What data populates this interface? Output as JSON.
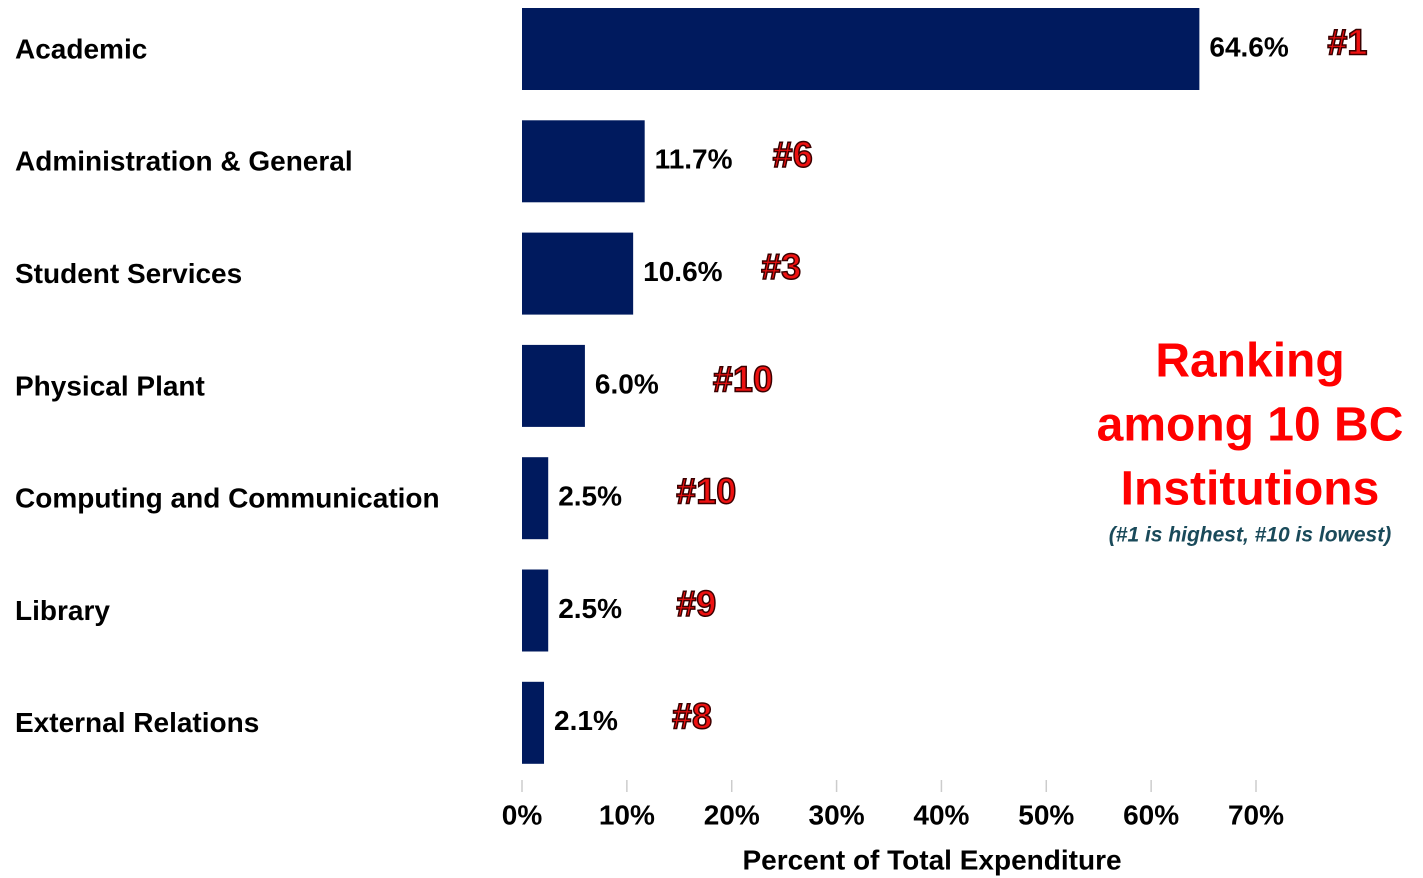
{
  "chart_data": {
    "type": "bar",
    "orientation": "horizontal",
    "categories": [
      "Academic",
      "Administration & General",
      "Student Services",
      "Physical Plant",
      "Computing and Communication",
      "Library",
      "External Relations"
    ],
    "values": [
      64.6,
      11.7,
      10.6,
      6.0,
      2.5,
      2.5,
      2.1
    ],
    "value_labels": [
      "64.6%",
      "11.7%",
      "10.6%",
      "6.0%",
      "2.5%",
      "2.5%",
      "2.1%"
    ],
    "ranks": [
      "#1",
      "#6",
      "#3",
      "#10",
      "#10",
      "#9",
      "#8"
    ],
    "color": "#001a5e",
    "xlabel": "Percent of Total Expenditure",
    "xlim": [
      0,
      70
    ],
    "xticks": [
      {
        "value": 0,
        "label": "0%"
      },
      {
        "value": 10,
        "label": "10%"
      },
      {
        "value": 20,
        "label": "20%"
      },
      {
        "value": 30,
        "label": "30%"
      },
      {
        "value": 40,
        "label": "40%"
      },
      {
        "value": 50,
        "label": "50%"
      },
      {
        "value": 60,
        "label": "60%"
      },
      {
        "value": 70,
        "label": "70%"
      }
    ],
    "annotation": [
      "Ranking",
      "among 10 BC",
      "Institutions"
    ],
    "annotation_note": "(#1 is highest, #10 is lowest)"
  }
}
